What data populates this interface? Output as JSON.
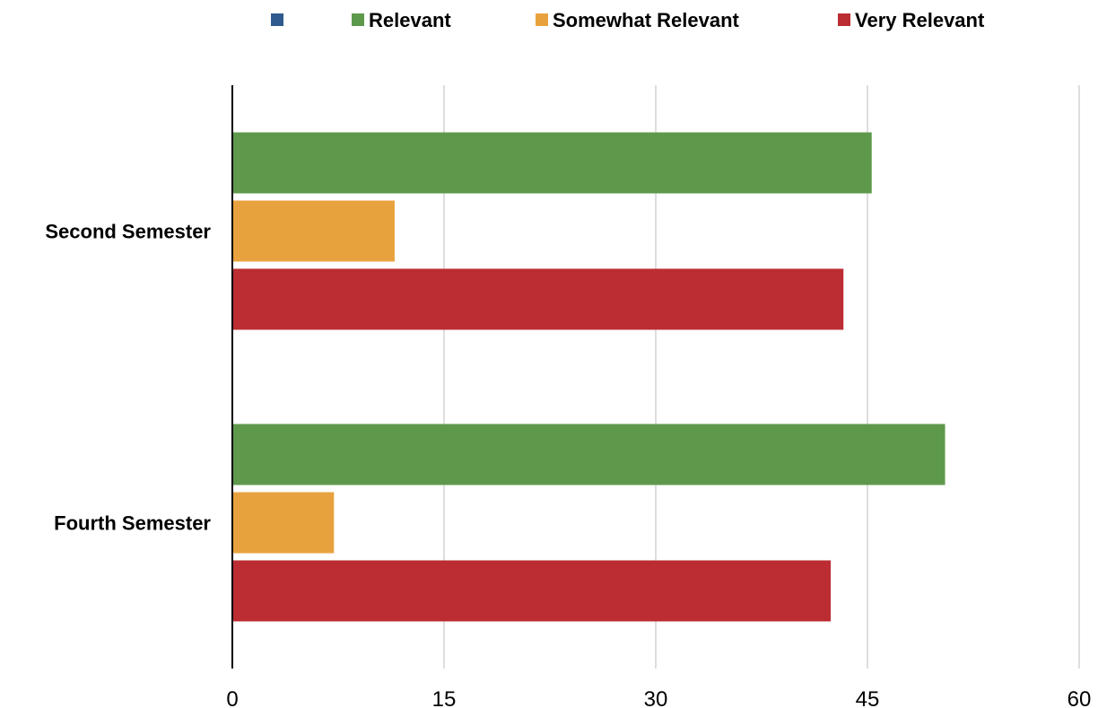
{
  "chart_data": {
    "type": "bar",
    "orientation": "horizontal",
    "categories": [
      "Second Semester",
      "Fourth Semester"
    ],
    "series": [
      {
        "name": "",
        "color": "#2e5a8f",
        "values": [
          0,
          0
        ]
      },
      {
        "name": "Relevant",
        "color": "#5e994b",
        "values": [
          45.3,
          50.5
        ]
      },
      {
        "name": "Somewhat Relevant",
        "color": "#e8a23d",
        "values": [
          11.5,
          7.2
        ]
      },
      {
        "name": "Very Relevant",
        "color": "#bb2d32",
        "values": [
          43.3,
          42.4
        ]
      }
    ],
    "xlim": [
      0,
      60
    ],
    "xticks": [
      "0",
      "15",
      "30",
      "45",
      "60"
    ],
    "grid": true,
    "legend_position": "top"
  }
}
